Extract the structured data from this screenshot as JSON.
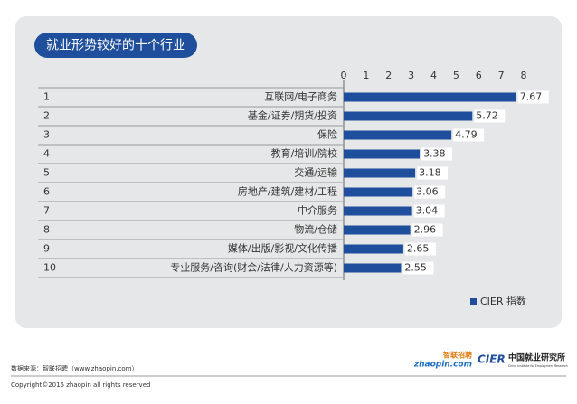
{
  "chart_data": {
    "type": "hbar",
    "title": "就业形势较好的十个行业",
    "ranks": [
      1,
      2,
      3,
      4,
      5,
      6,
      7,
      8,
      9,
      10
    ],
    "categories": [
      "互联网/电子商务",
      "基金/证券/期货/投资",
      "保险",
      "教育/培训/院校",
      "交通/运输",
      "房地产/建筑/建材/工程",
      "中介服务",
      "物流/仓储",
      "媒体/出版/影视/文化传播",
      "专业服务/咨询(财会/法律/人力资源等)"
    ],
    "series": [
      {
        "name": "CIER 指数",
        "color": "#1f4e9c",
        "values": [
          7.67,
          5.72,
          4.79,
          3.38,
          3.18,
          3.06,
          3.04,
          2.96,
          2.65,
          2.55
        ]
      }
    ],
    "xlim": [
      0,
      8
    ],
    "xticks": [
      0,
      1,
      2,
      3,
      4,
      5,
      6,
      7,
      8
    ],
    "legend": "bottom-right"
  },
  "footer": {
    "source": "数据来源：智联招聘（www.zhaopin.com）",
    "copyright": "Copyright©2015 zhaopin all rights reserved",
    "logo_zhaopin": "zhaopin.com",
    "logo_zhaopin_cn": "智联招聘",
    "logo_cier": "CIER",
    "logo_cier_cn": "中国就业研究所",
    "logo_cier_en": "China Institute for Employment Research"
  }
}
